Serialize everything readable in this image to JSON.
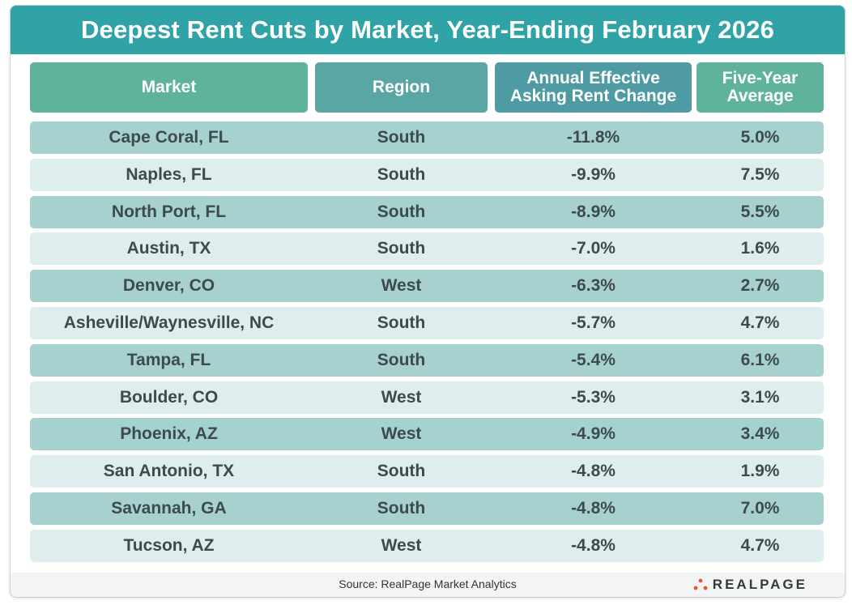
{
  "header": {
    "title": "Deepest Rent Cuts by Market, Year-Ending February 2026"
  },
  "columns": {
    "market": "Market",
    "region": "Region",
    "annual_line1": "Annual Effective",
    "annual_line2": "Asking Rent Change",
    "avg_line1": "Five-Year",
    "avg_line2": "Average"
  },
  "chart_data": {
    "type": "table",
    "title": "Deepest Rent Cuts by Market, Year-Ending February 2026",
    "columns": [
      "Market",
      "Region",
      "Annual Effective Asking Rent Change",
      "Five-Year Average"
    ],
    "rows": [
      {
        "market": "Cape Coral, FL",
        "region": "South",
        "annual_change": "-11.8%",
        "five_year_avg": "5.0%"
      },
      {
        "market": "Naples, FL",
        "region": "South",
        "annual_change": "-9.9%",
        "five_year_avg": "7.5%"
      },
      {
        "market": "North Port, FL",
        "region": "South",
        "annual_change": "-8.9%",
        "five_year_avg": "5.5%"
      },
      {
        "market": "Austin, TX",
        "region": "South",
        "annual_change": "-7.0%",
        "five_year_avg": "1.6%"
      },
      {
        "market": "Denver, CO",
        "region": "West",
        "annual_change": "-6.3%",
        "five_year_avg": "2.7%"
      },
      {
        "market": "Asheville/Waynesville, NC",
        "region": "South",
        "annual_change": "-5.7%",
        "five_year_avg": "4.7%"
      },
      {
        "market": "Tampa, FL",
        "region": "South",
        "annual_change": "-5.4%",
        "five_year_avg": "6.1%"
      },
      {
        "market": "Boulder, CO",
        "region": "West",
        "annual_change": "-5.3%",
        "five_year_avg": "3.1%"
      },
      {
        "market": "Phoenix, AZ",
        "region": "West",
        "annual_change": "-4.9%",
        "five_year_avg": "3.4%"
      },
      {
        "market": "San Antonio, TX",
        "region": "South",
        "annual_change": "-4.8%",
        "five_year_avg": "1.9%"
      },
      {
        "market": "Savannah, GA",
        "region": "South",
        "annual_change": "-4.8%",
        "five_year_avg": "7.0%"
      },
      {
        "market": "Tucson, AZ",
        "region": "West",
        "annual_change": "-4.8%",
        "five_year_avg": "4.7%"
      }
    ]
  },
  "footer": {
    "source": "Source:  RealPage Market Analytics",
    "logo_text": "REALPAGE"
  },
  "colors": {
    "title_bar": "#2fa3a6",
    "row_odd": "#a7d1cf",
    "row_even": "#deeeee",
    "logo_dot": "#e8562a",
    "text": "#3d4a4e"
  },
  "icons": {
    "logo": "realpage-dots-icon"
  }
}
